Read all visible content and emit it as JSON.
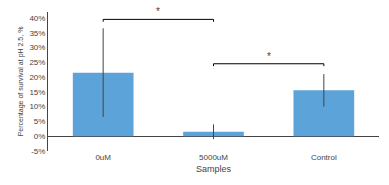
{
  "chart_data": {
    "type": "bar",
    "categories": [
      "0uM",
      "5000uM",
      "Control"
    ],
    "values": [
      21.5,
      1.5,
      15.5
    ],
    "errors": [
      15.0,
      2.5,
      5.5
    ],
    "color": "#5ba3d9",
    "xlabel": "Samples",
    "ylabel": "Percentage of survival at pH 2.5, %",
    "ylim": [
      -5,
      42
    ],
    "yticks": [
      {
        "value": -5,
        "label": "-5%"
      },
      {
        "value": 0,
        "label": "0%"
      },
      {
        "value": 5,
        "label": "5%"
      },
      {
        "value": 10,
        "label": "10%"
      },
      {
        "value": 15,
        "label": "15%"
      },
      {
        "value": 20,
        "label": "20%"
      },
      {
        "value": 25,
        "label": "25%"
      },
      {
        "value": 30,
        "label": "30%"
      },
      {
        "value": 35,
        "label": "35%"
      },
      {
        "value": 40,
        "label": "40%"
      }
    ],
    "grid": false,
    "significance": [
      {
        "from": "0uM",
        "to": "5000uM",
        "y": 39.5,
        "label": "*"
      },
      {
        "from": "5000uM",
        "to": "Control",
        "y": 24.5,
        "label": "*"
      }
    ]
  }
}
